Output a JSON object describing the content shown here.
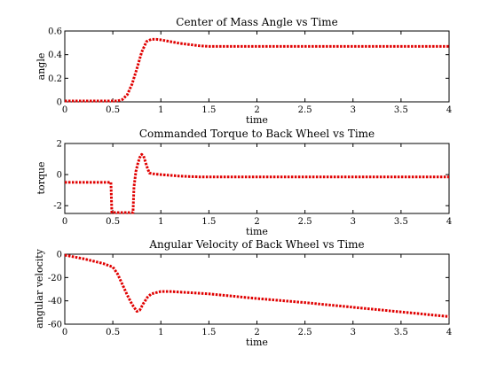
{
  "chart_data": [
    {
      "type": "line",
      "title": "Center of Mass Angle vs Time",
      "xlabel": "time",
      "ylabel": "angle",
      "xlim": [
        0,
        4
      ],
      "ylim": [
        0,
        0.6
      ],
      "xticks": [
        0,
        0.5,
        1,
        1.5,
        2,
        2.5,
        3,
        3.5,
        4
      ],
      "xtick_labels": [
        "0",
        "0.5",
        "1",
        "1.5",
        "2",
        "2.5",
        "3",
        "3.5",
        "4"
      ],
      "yticks": [
        0,
        0.2,
        0.4,
        0.6
      ],
      "ytick_labels": [
        "0",
        "0.2",
        "0.4",
        "0.6"
      ],
      "grid": false,
      "color": "#e00000",
      "series": [
        {
          "x": [
            0,
            0.5,
            0.55,
            0.6,
            0.65,
            0.7,
            0.75,
            0.8,
            0.85,
            0.9,
            0.95,
            1.0,
            1.1,
            1.2,
            1.3,
            1.4,
            1.5,
            1.7,
            2.0,
            2.5,
            3.0,
            3.5,
            4.0
          ],
          "y": [
            0,
            0,
            0.005,
            0.02,
            0.06,
            0.15,
            0.28,
            0.42,
            0.51,
            0.53,
            0.53,
            0.525,
            0.51,
            0.495,
            0.485,
            0.475,
            0.47,
            0.47,
            0.47,
            0.47,
            0.47,
            0.47,
            0.47
          ]
        }
      ]
    },
    {
      "type": "line",
      "title": "Commanded Torque to Back Wheel vs Time",
      "xlabel": "time",
      "ylabel": "torque",
      "xlim": [
        0,
        4
      ],
      "ylim": [
        -2.5,
        2
      ],
      "xticks": [
        0,
        0.5,
        1,
        1.5,
        2,
        2.5,
        3,
        3.5,
        4
      ],
      "xtick_labels": [
        "0",
        "0.5",
        "1",
        "1.5",
        "2",
        "2.5",
        "3",
        "3.5",
        "4"
      ],
      "yticks": [
        -2,
        0,
        2
      ],
      "ytick_labels": [
        "-2",
        "0",
        "2"
      ],
      "grid": false,
      "color": "#e00000",
      "series": [
        {
          "x": [
            0,
            0.48,
            0.49,
            0.5,
            0.55,
            0.6,
            0.65,
            0.7,
            0.71,
            0.72,
            0.74,
            0.76,
            0.78,
            0.8,
            0.82,
            0.85,
            0.88,
            0.92,
            1.0,
            1.2,
            1.4,
            2.0,
            3.0,
            4.0
          ],
          "y": [
            -0.5,
            -0.5,
            -2.5,
            -2.5,
            -2.5,
            -2.5,
            -2.5,
            -2.5,
            -2.5,
            -0.8,
            0.2,
            0.7,
            1.1,
            1.3,
            1.2,
            0.6,
            0.1,
            0.05,
            0.0,
            -0.1,
            -0.15,
            -0.15,
            -0.15,
            -0.15
          ]
        }
      ]
    },
    {
      "type": "line",
      "title": "Angular Velocity of Back Wheel vs Time",
      "xlabel": "time",
      "ylabel": "angular velocity",
      "xlim": [
        0,
        4
      ],
      "ylim": [
        -60,
        0
      ],
      "xticks": [
        0,
        0.5,
        1,
        1.5,
        2,
        2.5,
        3,
        3.5,
        4
      ],
      "xtick_labels": [
        "0",
        "0.5",
        "1",
        "1.5",
        "2",
        "2.5",
        "3",
        "3.5",
        "4"
      ],
      "yticks": [
        -60,
        -40,
        -20,
        0
      ],
      "ytick_labels": [
        "-60",
        "-40",
        "-20",
        "0"
      ],
      "grid": false,
      "color": "#e00000",
      "series": [
        {
          "x": [
            0,
            0.2,
            0.4,
            0.5,
            0.55,
            0.6,
            0.65,
            0.7,
            0.75,
            0.78,
            0.82,
            0.86,
            0.9,
            0.95,
            1.0,
            1.1,
            1.2,
            1.5,
            2.0,
            2.5,
            3.0,
            3.5,
            4.0
          ],
          "y": [
            0,
            -4,
            -8,
            -11,
            -17,
            -26,
            -35,
            -43,
            -49,
            -48,
            -42,
            -37,
            -34,
            -33,
            -32,
            -32,
            -32.5,
            -34,
            -38,
            -41.5,
            -45.5,
            -49.5,
            -53.5
          ]
        }
      ]
    }
  ]
}
